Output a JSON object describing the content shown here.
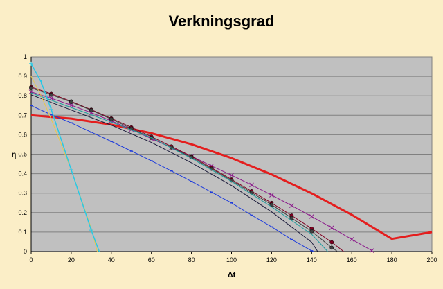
{
  "chart_data": {
    "type": "line",
    "title": "Verkningsgrad",
    "xlabel": "Δt",
    "ylabel": "η",
    "xlim": [
      0,
      200
    ],
    "ylim": [
      0,
      1
    ],
    "x_ticks": [
      0,
      20,
      40,
      60,
      80,
      100,
      120,
      140,
      160,
      180,
      200
    ],
    "y_ticks": [
      0,
      0.1,
      0.2,
      0.3,
      0.4,
      0.5,
      0.6,
      0.7,
      0.8,
      0.9,
      1
    ],
    "grid": true,
    "legend": "none",
    "colors": {
      "plot_background": "#c0c0c0",
      "page_background": "#fbeec7",
      "grid": "#808080"
    },
    "series": [
      {
        "color": "#e41e1e",
        "width": 3,
        "marker": "none",
        "x": [
          0,
          20,
          40,
          60,
          80,
          100,
          120,
          140,
          160,
          180,
          200
        ],
        "y": [
          0.7,
          0.683,
          0.652,
          0.608,
          0.551,
          0.48,
          0.396,
          0.299,
          0.189,
          0.065,
          0.1
        ]
      },
      {
        "color": "#8b1a8b",
        "width": 1,
        "marker": "x",
        "x": [
          0,
          10,
          20,
          30,
          40,
          50,
          60,
          70,
          80,
          90,
          100,
          110,
          120,
          130,
          140,
          150,
          160,
          170
        ],
        "y": [
          0.82,
          0.787,
          0.752,
          0.713,
          0.671,
          0.627,
          0.58,
          0.534,
          0.49,
          0.44,
          0.392,
          0.342,
          0.29,
          0.236,
          0.18,
          0.122,
          0.063,
          0.005
        ]
      },
      {
        "color": "#800020",
        "width": 1,
        "marker": "dot",
        "x": [
          0,
          10,
          20,
          30,
          40,
          50,
          60,
          70,
          80,
          90,
          100,
          110,
          120,
          130,
          140,
          150,
          156
        ],
        "y": [
          0.845,
          0.81,
          0.771,
          0.729,
          0.684,
          0.638,
          0.59,
          0.54,
          0.489,
          0.43,
          0.37,
          0.31,
          0.25,
          0.185,
          0.118,
          0.048,
          0.0
        ]
      },
      {
        "color": "#404040",
        "width": 1,
        "marker": "dot",
        "x": [
          0,
          10,
          20,
          30,
          40,
          50,
          60,
          70,
          80,
          90,
          100,
          110,
          120,
          130,
          140,
          150,
          153
        ],
        "y": [
          0.84,
          0.805,
          0.768,
          0.726,
          0.68,
          0.632,
          0.584,
          0.534,
          0.484,
          0.425,
          0.365,
          0.303,
          0.241,
          0.172,
          0.104,
          0.02,
          0.0
        ]
      },
      {
        "color": "#1e9d9d",
        "width": 1,
        "marker": "none",
        "x": [
          0,
          20,
          40,
          60,
          80,
          100,
          120,
          140,
          148
        ],
        "y": [
          0.815,
          0.74,
          0.665,
          0.585,
          0.479,
          0.36,
          0.23,
          0.089,
          0.0
        ]
      },
      {
        "color": "#1a1a3a",
        "width": 1,
        "marker": "none",
        "x": [
          0,
          20,
          40,
          60,
          80,
          100,
          120,
          140,
          143
        ],
        "y": [
          0.805,
          0.727,
          0.649,
          0.56,
          0.456,
          0.339,
          0.204,
          0.048,
          0.0
        ]
      },
      {
        "color": "#1e3cdc",
        "width": 1,
        "marker": "dash",
        "x": [
          0,
          10,
          20,
          30,
          40,
          50,
          60,
          70,
          80,
          90,
          100,
          110,
          120,
          130,
          140,
          141
        ],
        "y": [
          0.75,
          0.703,
          0.661,
          0.613,
          0.566,
          0.516,
          0.466,
          0.414,
          0.36,
          0.305,
          0.25,
          0.187,
          0.127,
          0.062,
          0.004,
          0.0
        ]
      },
      {
        "color": "#e8c84a",
        "width": 1,
        "marker": "none",
        "x": [
          0,
          5,
          10,
          20,
          30,
          33
        ],
        "y": [
          0.9,
          0.8,
          0.68,
          0.42,
          0.12,
          0.0
        ]
      },
      {
        "color": "#28c8e6",
        "width": 1.5,
        "marker": "star",
        "x": [
          0,
          5,
          10,
          20,
          30,
          34
        ],
        "y": [
          0.965,
          0.87,
          0.73,
          0.42,
          0.11,
          0.0
        ]
      }
    ]
  }
}
